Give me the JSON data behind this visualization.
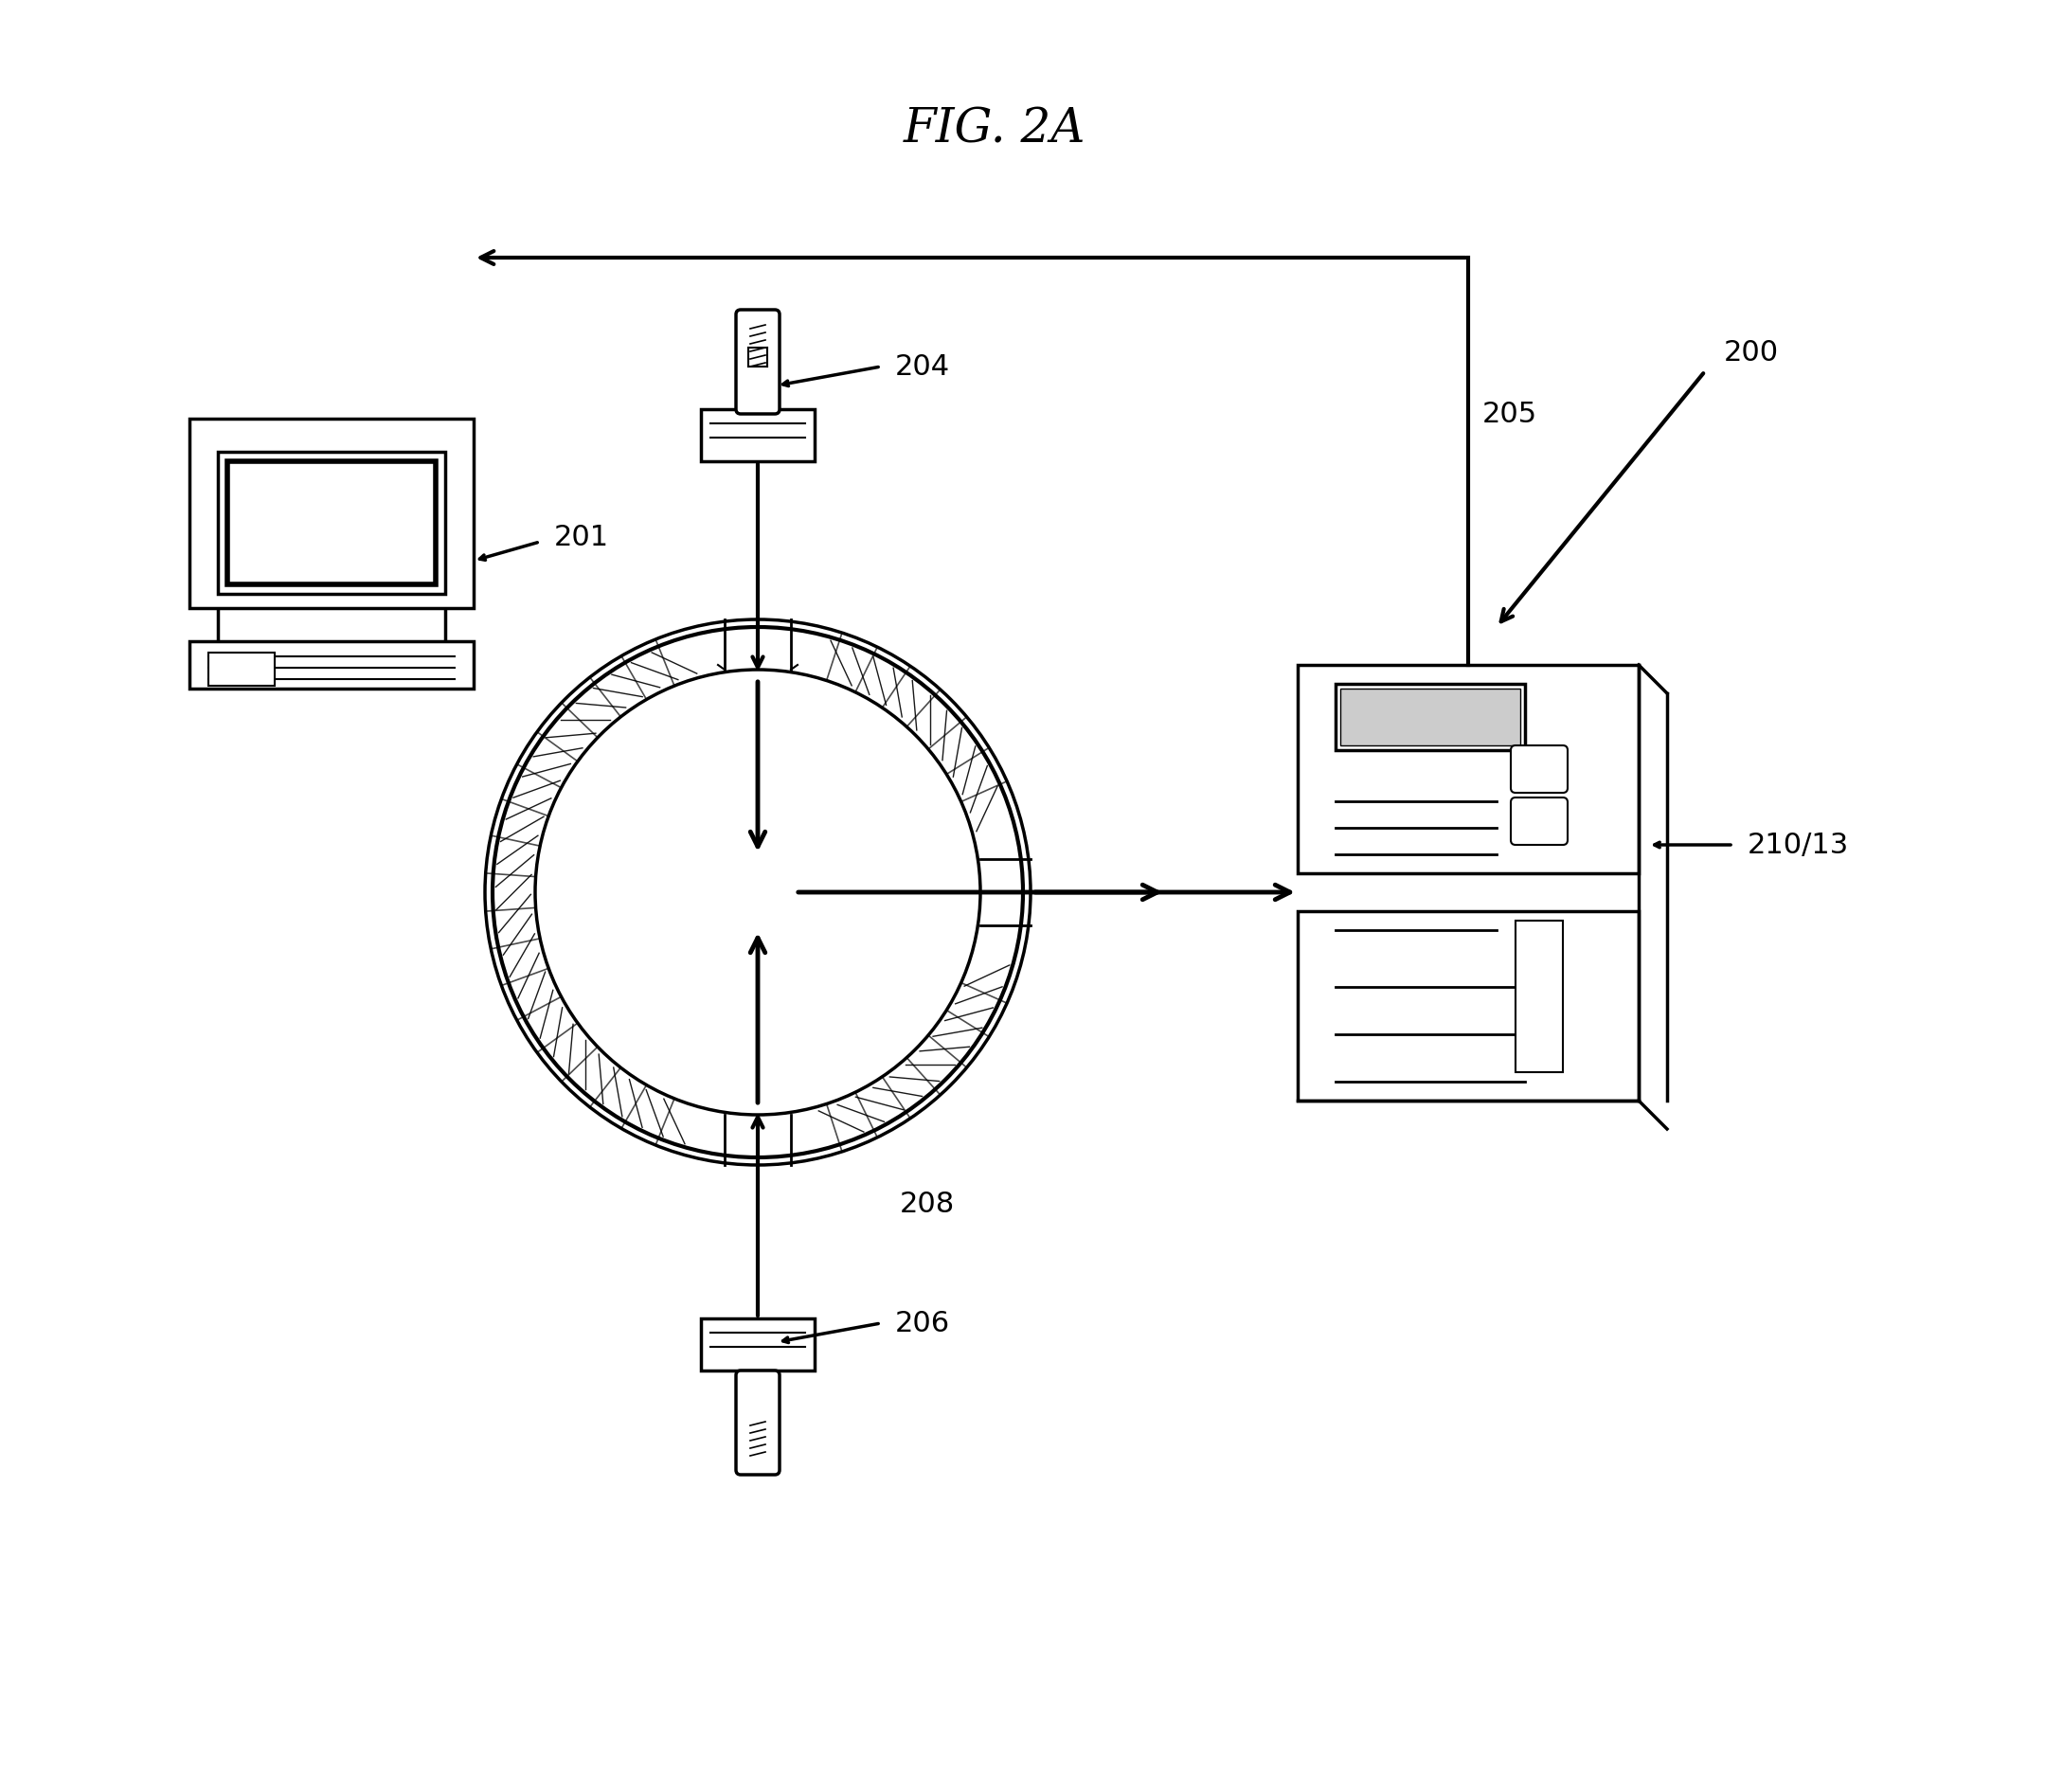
{
  "title": "FIG. 2A",
  "bg_color": "#ffffff",
  "label_200": "200",
  "label_201": "201",
  "label_204": "204",
  "label_205": "205",
  "label_206": "206",
  "label_208": "208",
  "label_210": "210/13",
  "title_fontsize": 36,
  "label_fontsize": 22,
  "line_color": "#000000"
}
